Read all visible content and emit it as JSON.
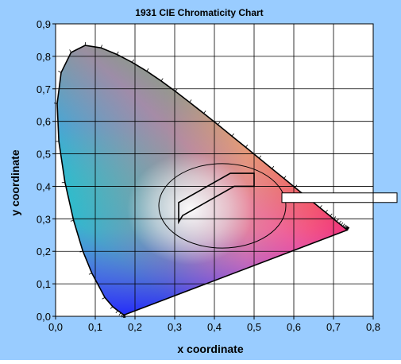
{
  "chart_data": {
    "type": "scatter",
    "title": "1931 CIE Chromaticity Chart",
    "xlabel": "x coordinate",
    "ylabel": "y coordinate",
    "xlim": [
      0,
      0.8
    ],
    "ylim": [
      0,
      0.9
    ],
    "x_ticks": [
      0,
      0.1,
      0.2,
      0.3,
      0.4,
      0.5,
      0.6,
      0.7,
      0.8
    ],
    "y_ticks": [
      0,
      0.1,
      0.2,
      0.3,
      0.4,
      0.5,
      0.6,
      0.7,
      0.8,
      0.9
    ],
    "x_tick_labels": [
      "0,0",
      "0,1",
      "0,2",
      "0,3",
      "0,4",
      "0,5",
      "0,6",
      "0,7",
      "0,8"
    ],
    "y_tick_labels": [
      "0,0",
      "0,1",
      "0,2",
      "0,3",
      "0,4",
      "0,5",
      "0,6",
      "0,7",
      "0,8",
      "0,9"
    ],
    "grid": true,
    "spectral_locus": [
      [
        0.1741,
        0.005
      ],
      [
        0.1736,
        0.0049
      ],
      [
        0.1733,
        0.0048
      ],
      [
        0.1726,
        0.0048
      ],
      [
        0.1714,
        0.0051
      ],
      [
        0.1689,
        0.0069
      ],
      [
        0.1644,
        0.0109
      ],
      [
        0.1566,
        0.0177
      ],
      [
        0.144,
        0.0297
      ],
      [
        0.1241,
        0.0578
      ],
      [
        0.0913,
        0.1327
      ],
      [
        0.0687,
        0.2007
      ],
      [
        0.0454,
        0.295
      ],
      [
        0.0235,
        0.4127
      ],
      [
        0.0082,
        0.5384
      ],
      [
        0.0039,
        0.6548
      ],
      [
        0.0139,
        0.7502
      ],
      [
        0.0389,
        0.812
      ],
      [
        0.0743,
        0.8338
      ],
      [
        0.1142,
        0.8262
      ],
      [
        0.1547,
        0.8059
      ],
      [
        0.1929,
        0.7816
      ],
      [
        0.2296,
        0.7543
      ],
      [
        0.2658,
        0.7243
      ],
      [
        0.3016,
        0.6923
      ],
      [
        0.3373,
        0.6589
      ],
      [
        0.3731,
        0.6245
      ],
      [
        0.4087,
        0.5896
      ],
      [
        0.4441,
        0.5547
      ],
      [
        0.4788,
        0.5202
      ],
      [
        0.5125,
        0.4866
      ],
      [
        0.5448,
        0.4544
      ],
      [
        0.5752,
        0.4242
      ],
      [
        0.6029,
        0.3965
      ],
      [
        0.627,
        0.3725
      ],
      [
        0.6482,
        0.3514
      ],
      [
        0.6658,
        0.334
      ],
      [
        0.6801,
        0.3197
      ],
      [
        0.6915,
        0.3083
      ],
      [
        0.7006,
        0.2993
      ],
      [
        0.7079,
        0.292
      ],
      [
        0.714,
        0.2859
      ],
      [
        0.719,
        0.2809
      ],
      [
        0.723,
        0.277
      ],
      [
        0.726,
        0.274
      ],
      [
        0.7283,
        0.2717
      ],
      [
        0.73,
        0.27
      ],
      [
        0.7311,
        0.2689
      ],
      [
        0.732,
        0.268
      ],
      [
        0.7327,
        0.2673
      ],
      [
        0.7334,
        0.2666
      ],
      [
        0.734,
        0.266
      ],
      [
        0.7344,
        0.2656
      ],
      [
        0.7346,
        0.2654
      ],
      [
        0.7347,
        0.2653
      ]
    ],
    "ellipse": {
      "cx": 0.42,
      "cy": 0.34,
      "rx": 0.16,
      "ry": 0.13
    },
    "highlight_region": [
      [
        0.31,
        0.29
      ],
      [
        0.31,
        0.35
      ],
      [
        0.44,
        0.44
      ],
      [
        0.5,
        0.44
      ],
      [
        0.5,
        0.4
      ],
      [
        0.45,
        0.4
      ],
      [
        0.32,
        0.31
      ]
    ],
    "callout": {
      "x": 0.57,
      "y": 0.365,
      "text": ""
    }
  },
  "colors": {
    "outer_background": "#99ccff",
    "plot_background": "#ffffff",
    "axis": "#000000",
    "grid": "#000000"
  }
}
